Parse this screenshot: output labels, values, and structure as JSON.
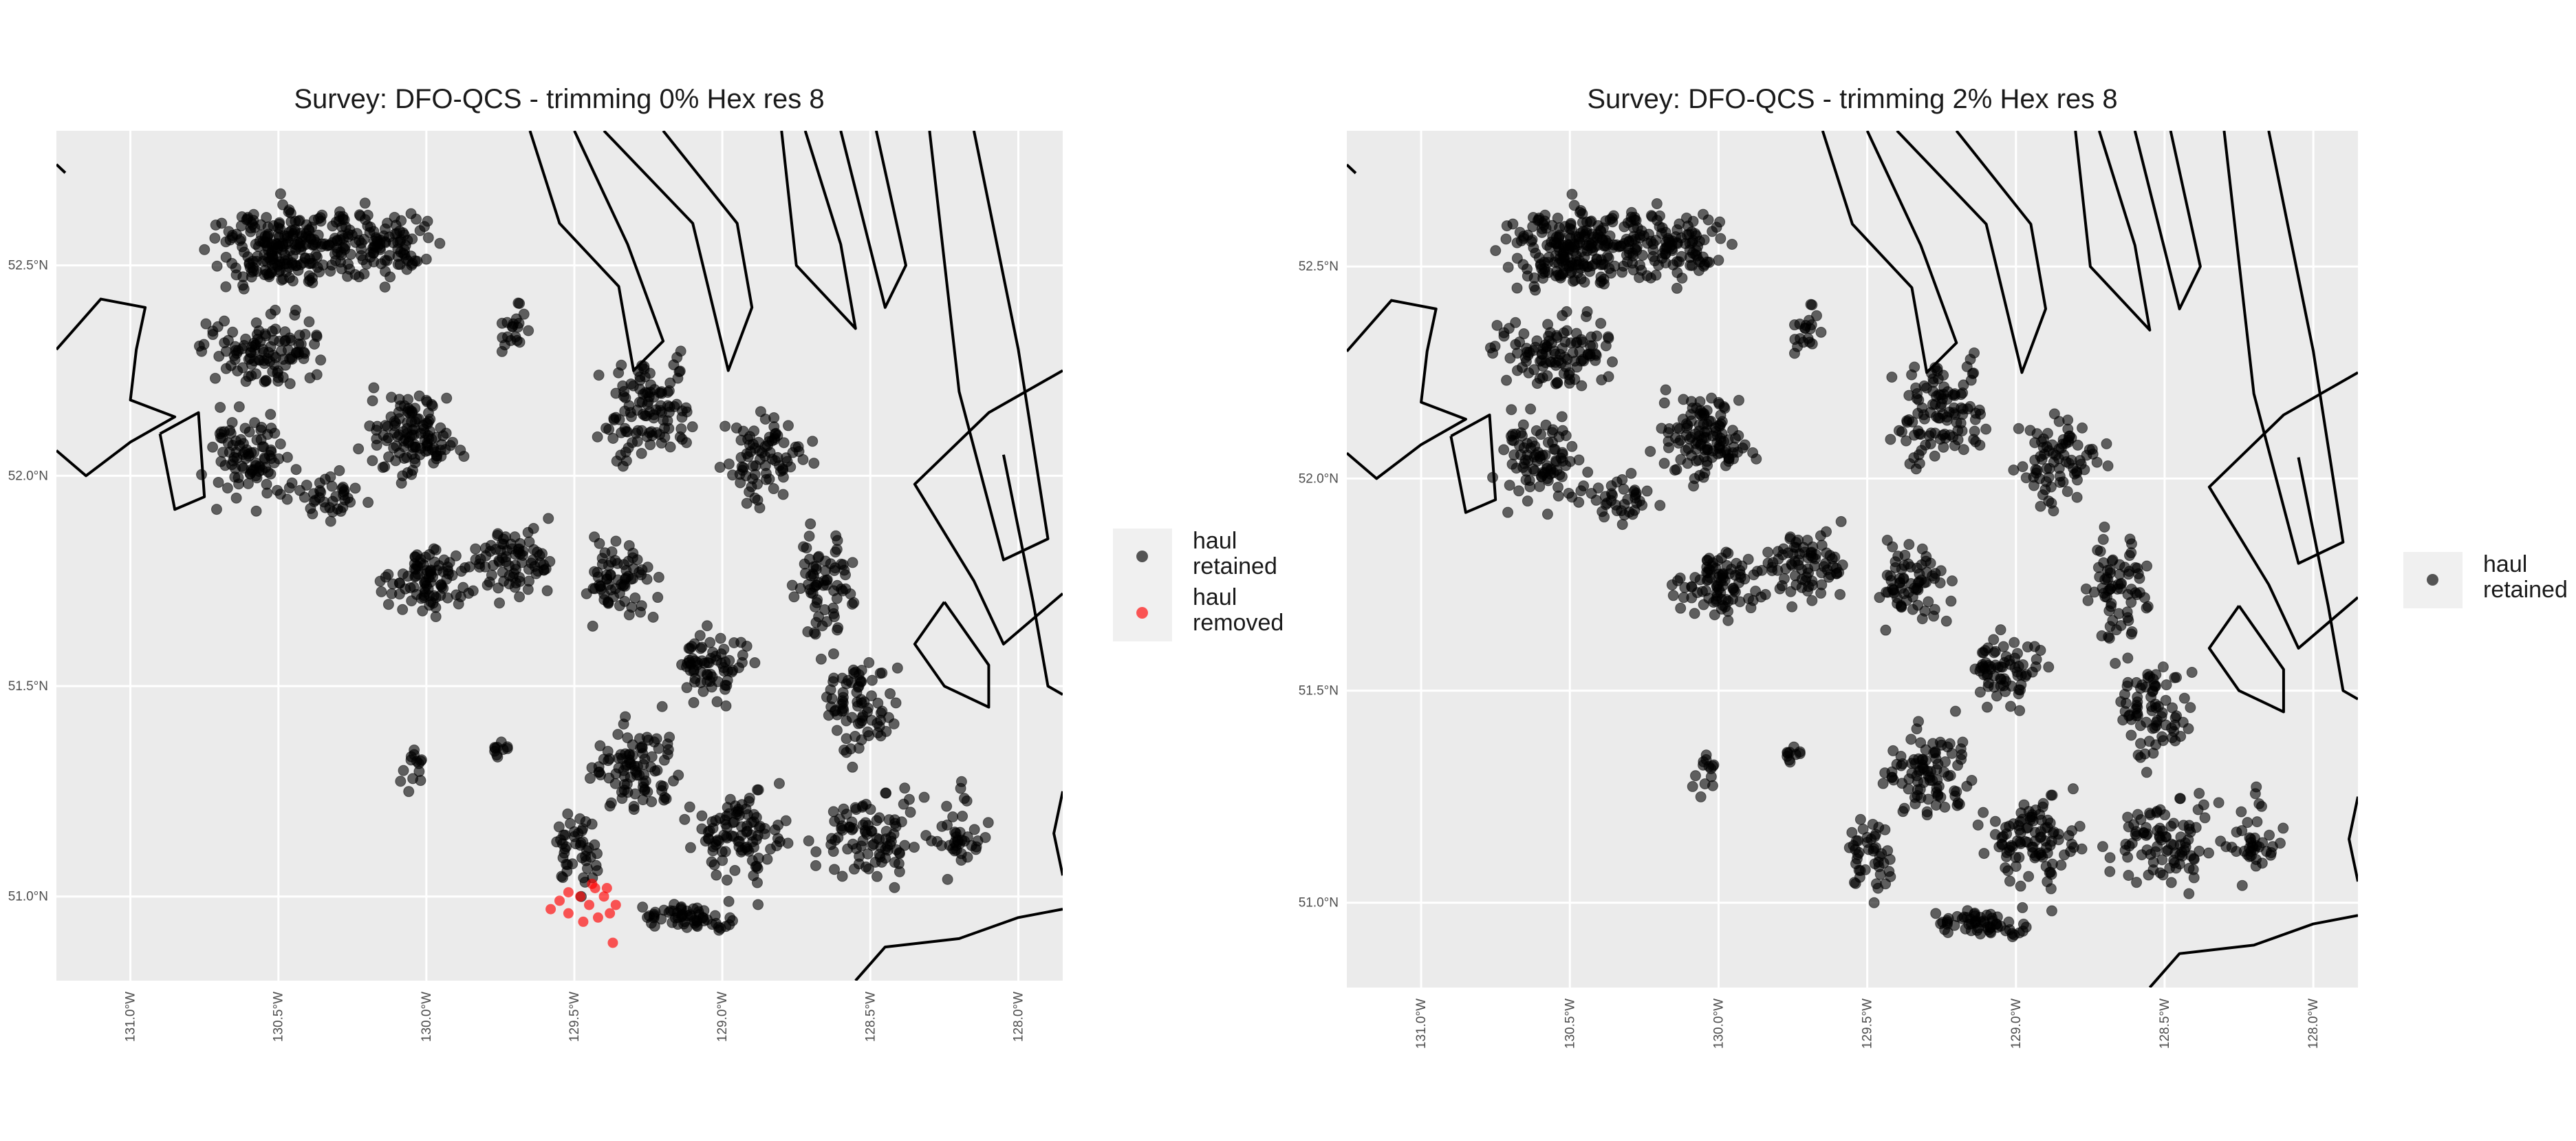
{
  "colors": {
    "panel_bg": "#ebebeb",
    "grid": "#ffffff",
    "coast": "#000000",
    "retained": "#000000",
    "removed": "#ff0000"
  },
  "panels": [
    {
      "title": "Survey: DFO-QCS - trimming 0% Hex res 8",
      "x_ticks": [
        "131.0°W",
        "130.5°W",
        "130.0°W",
        "129.5°W",
        "129.0°W",
        "128.5°W",
        "128.0°W"
      ],
      "y_ticks": [
        "52.5°N",
        "52.0°N",
        "51.5°N",
        "51.0°N"
      ],
      "legend": [
        {
          "label": "haul retained",
          "color": "#000000"
        },
        {
          "label": "haul removed",
          "color": "#ff0000"
        }
      ],
      "map_data": {
        "lon_range": [
          -131.25,
          -127.85
        ],
        "lat_range": [
          50.8,
          52.82
        ],
        "removed_hauls": [
          [
            -129.58,
            50.97
          ],
          [
            -129.55,
            50.99
          ],
          [
            -129.52,
            51.01
          ],
          [
            -129.48,
            51.0
          ],
          [
            -129.45,
            50.98
          ],
          [
            -129.43,
            51.02
          ],
          [
            -129.4,
            51.0
          ],
          [
            -129.38,
            50.96
          ],
          [
            -129.36,
            50.98
          ],
          [
            -129.42,
            50.95
          ],
          [
            -129.47,
            50.94
          ],
          [
            -129.52,
            50.96
          ],
          [
            -129.39,
            51.02
          ],
          [
            -129.37,
            50.89
          ],
          [
            -129.44,
            51.03
          ]
        ]
      }
    },
    {
      "title": "Survey: DFO-QCS - trimming 2% Hex res 8",
      "x_ticks": [
        "131.0°W",
        "130.5°W",
        "130.0°W",
        "129.5°W",
        "129.0°W",
        "128.5°W",
        "128.0°W"
      ],
      "y_ticks": [
        "52.5°N",
        "52.0°N",
        "51.5°N",
        "51.0°N"
      ],
      "legend": [
        {
          "label": "haul retained",
          "color": "#000000"
        }
      ],
      "map_data": {
        "lon_range": [
          -131.25,
          -127.85
        ],
        "lat_range": [
          50.8,
          52.82
        ],
        "removed_hauls": []
      }
    }
  ]
}
